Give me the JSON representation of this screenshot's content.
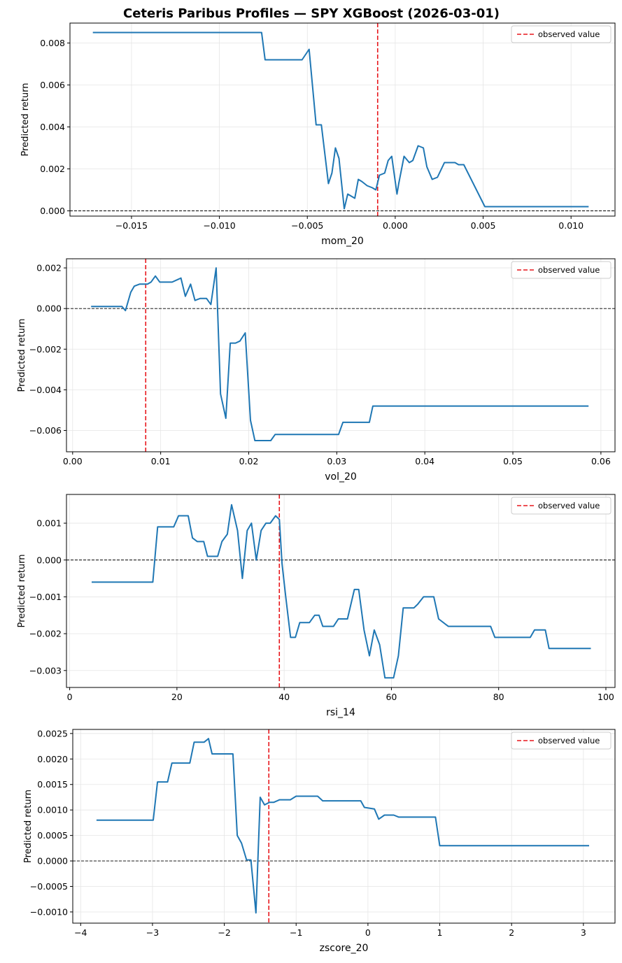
{
  "title": "Ceteris Paribus Profiles — SPY XGBoost (2026-03-01)",
  "colors": {
    "line": "#1f77b4",
    "observed": "#e8161b",
    "zero": "#000000",
    "grid": "#e5e5e5"
  },
  "chart_data": [
    {
      "type": "line",
      "xlabel": "mom_20",
      "ylabel": "Predicted return",
      "legend": [
        "observed value"
      ],
      "legend_placement": "top-right",
      "grid": true,
      "xlim": [
        -0.0185,
        0.0125
      ],
      "ylim": [
        -0.00025,
        0.00895
      ],
      "xticks": [
        -0.015,
        -0.01,
        -0.005,
        0.0,
        0.005,
        0.01
      ],
      "xtick_labels": [
        "−0.015",
        "−0.010",
        "−0.005",
        "0.000",
        "0.005",
        "0.010"
      ],
      "yticks": [
        0.0,
        0.002,
        0.004,
        0.006,
        0.008
      ],
      "ytick_labels": [
        "0.000",
        "0.002",
        "0.004",
        "0.006",
        "0.008"
      ],
      "observed_x": -0.001,
      "x": [
        -0.0172,
        -0.0076,
        -0.0074,
        -0.0053,
        -0.0049,
        -0.0045,
        -0.0042,
        -0.0038,
        -0.0036,
        -0.0034,
        -0.0032,
        -0.0029,
        -0.0027,
        -0.0023,
        -0.0021,
        -0.0019,
        -0.0016,
        -0.0013,
        -0.0011,
        -0.0009,
        -0.0006,
        -0.0004,
        -0.0002,
        0.0001,
        0.0002,
        0.0005,
        0.0008,
        0.001,
        0.0013,
        0.0016,
        0.0018,
        0.0021,
        0.0024,
        0.0028,
        0.0031,
        0.0034,
        0.0036,
        0.0039,
        0.0051,
        0.0054,
        0.0059,
        0.0062,
        0.011
      ],
      "y": [
        0.0085,
        0.0085,
        0.0072,
        0.0072,
        0.0077,
        0.0041,
        0.0041,
        0.0013,
        0.0018,
        0.003,
        0.0025,
        0.0001,
        0.0008,
        0.0006,
        0.0015,
        0.0014,
        0.0012,
        0.0011,
        0.001,
        0.0017,
        0.0018,
        0.0024,
        0.0026,
        0.0008,
        0.0013,
        0.0026,
        0.0023,
        0.0024,
        0.0031,
        0.003,
        0.0021,
        0.0015,
        0.0016,
        0.0023,
        0.0023,
        0.0023,
        0.0022,
        0.0022,
        0.0002,
        0.0002,
        0.0002,
        0.0002,
        0.0002
      ]
    },
    {
      "type": "line",
      "xlabel": "vol_20",
      "ylabel": "Predicted return",
      "legend": [
        "observed value"
      ],
      "legend_placement": "top-right",
      "grid": true,
      "xlim": [
        -0.0007,
        0.0616
      ],
      "ylim": [
        -0.00705,
        0.00245
      ],
      "xticks": [
        0.0,
        0.01,
        0.02,
        0.03,
        0.04,
        0.05,
        0.06
      ],
      "xtick_labels": [
        "0.00",
        "0.01",
        "0.02",
        "0.03",
        "0.04",
        "0.05",
        "0.06"
      ],
      "yticks": [
        -0.006,
        -0.004,
        -0.002,
        0.0,
        0.002
      ],
      "ytick_labels": [
        "−0.006",
        "−0.004",
        "−0.002",
        "0.000",
        "0.002"
      ],
      "observed_x": 0.0083,
      "x": [
        0.0021,
        0.0046,
        0.0056,
        0.006,
        0.0066,
        0.007,
        0.0076,
        0.0085,
        0.0089,
        0.0094,
        0.0099,
        0.0113,
        0.0123,
        0.0128,
        0.0134,
        0.0139,
        0.0145,
        0.0152,
        0.0157,
        0.0163,
        0.0168,
        0.0174,
        0.0179,
        0.0185,
        0.019,
        0.0196,
        0.0202,
        0.0207,
        0.0225,
        0.023,
        0.0302,
        0.0307,
        0.0337,
        0.0341,
        0.0586
      ],
      "y": [
        0.0001,
        0.0001,
        0.0001,
        -0.0001,
        0.0008,
        0.0011,
        0.0012,
        0.0012,
        0.0013,
        0.0016,
        0.0013,
        0.0013,
        0.0015,
        0.0006,
        0.0012,
        0.0004,
        0.0005,
        0.0005,
        0.0002,
        0.002,
        -0.0042,
        -0.0054,
        -0.0017,
        -0.0017,
        -0.0016,
        -0.0012,
        -0.0055,
        -0.0065,
        -0.0065,
        -0.0062,
        -0.0062,
        -0.0056,
        -0.0056,
        -0.0048,
        -0.0048
      ]
    },
    {
      "type": "line",
      "xlabel": "rsi_14",
      "ylabel": "Predicted return",
      "legend": [
        "observed value"
      ],
      "legend_placement": "top-right",
      "grid": true,
      "xlim": [
        -0.6,
        101.7
      ],
      "ylim": [
        -0.00346,
        0.00178
      ],
      "xticks": [
        0,
        20,
        40,
        60,
        80,
        100
      ],
      "xtick_labels": [
        "0",
        "20",
        "40",
        "60",
        "80",
        "100"
      ],
      "yticks": [
        -0.003,
        -0.002,
        -0.001,
        0.0,
        0.001
      ],
      "ytick_labels": [
        "−0.003",
        "−0.002",
        "−0.001",
        "0.000",
        "0.001"
      ],
      "observed_x": 39.1,
      "x": [
        4.1,
        15.5,
        16.4,
        19.4,
        20.3,
        22.1,
        22.9,
        23.8,
        25.0,
        25.7,
        27.6,
        28.4,
        29.4,
        30.2,
        31.3,
        32.2,
        33.1,
        33.9,
        34.8,
        35.7,
        36.6,
        37.4,
        38.4,
        39.1,
        39.6,
        40.3,
        41.2,
        42.1,
        42.9,
        44.0,
        44.7,
        45.7,
        46.5,
        47.2,
        48.3,
        49.2,
        50.1,
        51.8,
        53.1,
        53.9,
        54.9,
        55.9,
        56.8,
        57.8,
        58.8,
        60.4,
        61.3,
        62.2,
        64.2,
        64.9,
        66.0,
        67.9,
        68.8,
        70.6,
        75.4,
        76.3,
        78.5,
        79.3,
        85.9,
        86.7,
        87.7,
        88.7,
        89.4,
        97.2
      ],
      "y": [
        -0.0006,
        -0.0006,
        0.0009,
        0.0009,
        0.0012,
        0.0012,
        0.0006,
        0.0005,
        0.0005,
        0.0001,
        0.0001,
        0.0005,
        0.0007,
        0.0015,
        0.0008,
        -0.0005,
        0.0008,
        0.001,
        0.0,
        0.0008,
        0.001,
        0.001,
        0.0012,
        0.0011,
        -0.0001,
        -0.001,
        -0.0021,
        -0.0021,
        -0.0017,
        -0.0017,
        -0.0017,
        -0.0015,
        -0.0015,
        -0.0018,
        -0.0018,
        -0.0018,
        -0.0016,
        -0.0016,
        -0.0008,
        -0.0008,
        -0.0019,
        -0.0026,
        -0.0019,
        -0.0023,
        -0.0032,
        -0.0032,
        -0.0026,
        -0.0013,
        -0.0013,
        -0.0012,
        -0.001,
        -0.001,
        -0.0016,
        -0.0018,
        -0.0018,
        -0.0018,
        -0.0018,
        -0.0021,
        -0.0021,
        -0.0019,
        -0.0019,
        -0.0019,
        -0.0024,
        -0.0024
      ]
    },
    {
      "type": "line",
      "xlabel": "zscore_20",
      "ylabel": "Predicted return",
      "legend": [
        "observed value"
      ],
      "legend_placement": "top-right",
      "grid": true,
      "xlim": [
        -4.11,
        3.44
      ],
      "ylim": [
        -0.00122,
        0.00258
      ],
      "xticks": [
        -4,
        -3,
        -2,
        -1,
        0,
        1,
        2,
        3
      ],
      "xtick_labels": [
        "−4",
        "−3",
        "−2",
        "−1",
        "0",
        "1",
        "2",
        "3"
      ],
      "yticks": [
        -0.001,
        -0.0005,
        0.0,
        0.0005,
        0.001,
        0.0015,
        0.002,
        0.0025
      ],
      "ytick_labels": [
        "−0.0010",
        "−0.0005",
        "0.0000",
        "0.0005",
        "0.0010",
        "0.0015",
        "0.0020",
        "0.0025"
      ],
      "observed_x": -1.38,
      "x": [
        -3.78,
        -2.99,
        -2.93,
        -2.79,
        -2.73,
        -2.48,
        -2.42,
        -2.28,
        -2.22,
        -2.17,
        -2.1,
        -1.88,
        -1.82,
        -1.76,
        -1.69,
        -1.63,
        -1.56,
        -1.5,
        -1.44,
        -1.37,
        -1.31,
        -1.23,
        -1.08,
        -1.0,
        -0.7,
        -0.63,
        -0.1,
        -0.05,
        0.09,
        0.15,
        0.23,
        0.36,
        0.43,
        0.94,
        1.0,
        3.08
      ],
      "y": [
        0.0008,
        0.0008,
        0.00155,
        0.00155,
        0.00192,
        0.00192,
        0.00233,
        0.00233,
        0.0024,
        0.0021,
        0.0021,
        0.0021,
        0.0005,
        0.00035,
        2e-05,
        2e-05,
        -0.00102,
        0.00125,
        0.0011,
        0.00115,
        0.00115,
        0.0012,
        0.0012,
        0.00127,
        0.00127,
        0.00118,
        0.00118,
        0.00105,
        0.00102,
        0.00082,
        0.0009,
        0.0009,
        0.00086,
        0.00086,
        0.0003,
        0.0003
      ]
    }
  ]
}
